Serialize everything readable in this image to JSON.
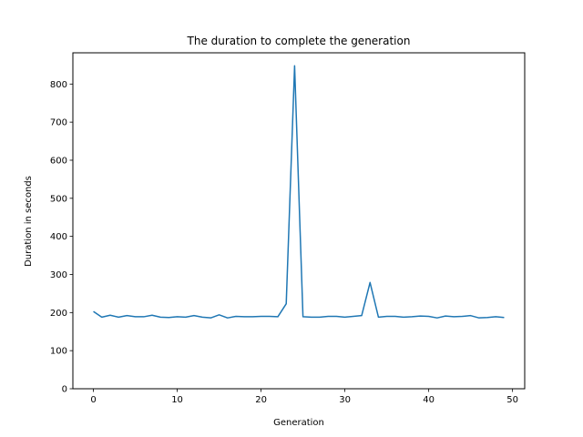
{
  "chart_data": {
    "type": "line",
    "title": "The duration to complete the generation",
    "xlabel": "Generation",
    "ylabel": "Duration in seconds",
    "xlim": [
      -2.45,
      51.45
    ],
    "ylim": [
      0,
      882
    ],
    "xticks": [
      0,
      10,
      20,
      30,
      40,
      50
    ],
    "yticks": [
      0,
      100,
      200,
      300,
      400,
      500,
      600,
      700,
      800
    ],
    "grid": false,
    "series": [
      {
        "color": "#1f77b4",
        "x": [
          0,
          1,
          2,
          3,
          4,
          5,
          6,
          7,
          8,
          9,
          10,
          11,
          12,
          13,
          14,
          15,
          16,
          17,
          18,
          19,
          20,
          21,
          22,
          23,
          24,
          25,
          26,
          27,
          28,
          29,
          30,
          31,
          32,
          33,
          34,
          35,
          36,
          37,
          38,
          39,
          40,
          41,
          42,
          43,
          44,
          45,
          46,
          47,
          48,
          49
        ],
        "y": [
          203,
          188,
          193,
          188,
          192,
          189,
          189,
          193,
          188,
          187,
          189,
          188,
          192,
          188,
          186,
          194,
          186,
          190,
          189,
          189,
          190,
          190,
          189,
          223,
          848,
          189,
          188,
          188,
          190,
          190,
          188,
          190,
          192,
          279,
          188,
          190,
          190,
          188,
          189,
          191,
          190,
          186,
          191,
          189,
          190,
          192,
          186,
          187,
          189,
          187
        ]
      }
    ]
  }
}
